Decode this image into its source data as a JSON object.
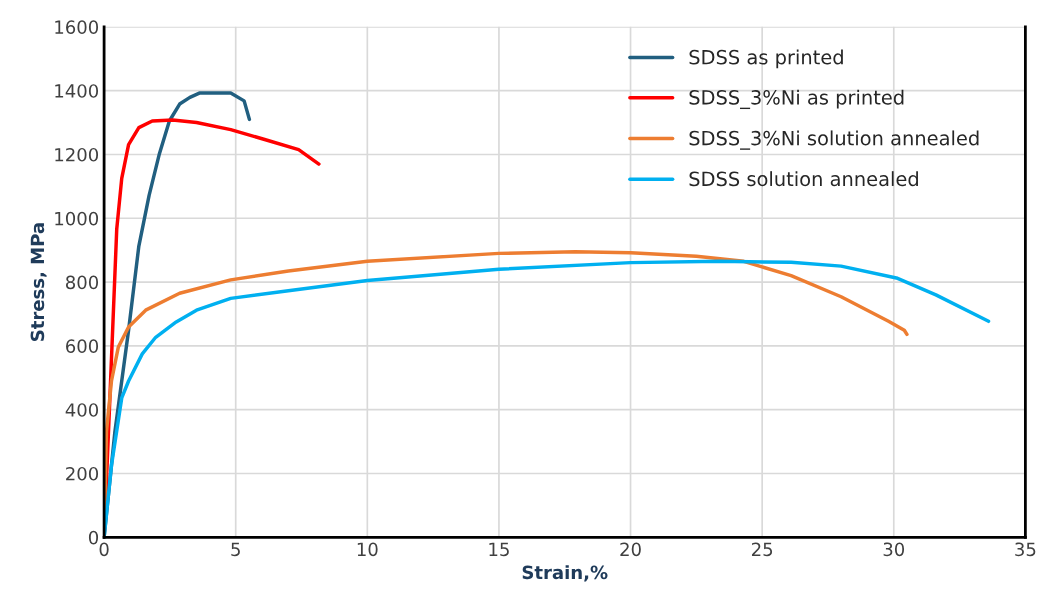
{
  "chart_data": {
    "type": "line",
    "xlabel": "Strain,%",
    "ylabel": "Stress, MPa",
    "xlim": [
      0,
      35
    ],
    "xticks": [
      0,
      5,
      10,
      15,
      20,
      25,
      30,
      35
    ],
    "ylim": [
      0,
      1600
    ],
    "yticks": [
      0,
      200,
      400,
      600,
      800,
      1000,
      1200,
      1400,
      1600
    ],
    "grid": true,
    "legend": "top right",
    "marker": "none",
    "line_style": "solid",
    "series": [
      {
        "name": "SDSS as printed",
        "color": "#215f80",
        "x": [
          0,
          0.41,
          0.93,
          1.32,
          1.71,
          2.09,
          2.48,
          2.87,
          3.26,
          3.64,
          4.81,
          5.32,
          5.52
        ],
        "values": [
          0,
          331,
          649,
          913,
          1072,
          1199,
          1305,
          1358,
          1379,
          1393,
          1393,
          1368,
          1310
        ]
      },
      {
        "name": "SDSS_3%Ni as printed",
        "color": "#ff0000",
        "x": [
          0,
          0.22,
          0.48,
          0.67,
          0.93,
          1.32,
          1.83,
          2.61,
          3.51,
          4.81,
          6.1,
          7.39,
          8.16
        ],
        "values": [
          0,
          437,
          966,
          1125,
          1231,
          1284,
          1305,
          1308,
          1300,
          1278,
          1247,
          1215,
          1170
        ]
      },
      {
        "name": "SDSS_3%Ni solution annealed",
        "color": "#ed7d31",
        "x": [
          0,
          0.09,
          0.28,
          0.54,
          0.93,
          1.58,
          2.87,
          4.81,
          7.0,
          10.0,
          15.0,
          17.9,
          20.0,
          22.5,
          24.3,
          26.1,
          28.0,
          29.8,
          30.4,
          30.5
        ],
        "values": [
          0,
          331,
          490,
          596,
          659,
          712,
          765,
          807,
          835,
          865,
          890,
          895,
          892,
          881,
          865,
          820,
          754,
          677,
          649,
          636
        ]
      },
      {
        "name": "SDSS solution annealed",
        "color": "#00b0f0",
        "x": [
          0,
          0.28,
          0.67,
          0.93,
          1.45,
          1.96,
          2.74,
          3.51,
          4.81,
          7.0,
          10.0,
          15.0,
          20.0,
          23.4,
          26.1,
          28.0,
          30.1,
          31.6,
          33.6
        ],
        "values": [
          0,
          225,
          437,
          490,
          575,
          627,
          675,
          712,
          749,
          773,
          805,
          840,
          861,
          865,
          862,
          850,
          813,
          760,
          677
        ]
      }
    ]
  }
}
